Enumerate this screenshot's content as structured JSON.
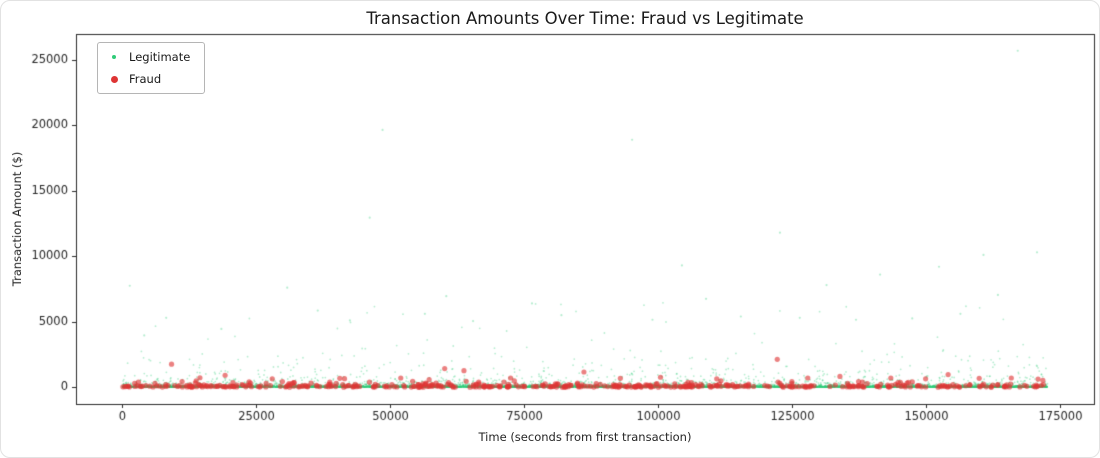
{
  "figure": {
    "background": "#ffffff",
    "border_color": "#e2e2e2"
  },
  "chart_data": {
    "type": "scatter",
    "title": "Transaction Amounts Over Time: Fraud vs Legitimate",
    "xlabel": "Time (seconds from first transaction)",
    "ylabel": "Transaction Amount ($)",
    "xlim": [
      -8640,
      181440
    ],
    "ylim": [
      -1285,
      26980
    ],
    "x_ticks": [
      0,
      25000,
      50000,
      75000,
      100000,
      125000,
      150000,
      175000
    ],
    "y_ticks": [
      0,
      5000,
      10000,
      15000,
      20000,
      25000
    ],
    "grid": false,
    "legend_position": "upper-left",
    "seed": 20240707,
    "series": [
      {
        "name": "Legitimate",
        "color": "#2fcb78",
        "alpha": 0.35,
        "radius_px": 0.9,
        "count": 11000,
        "x_range": [
          0,
          172800
        ],
        "y_model": {
          "type": "lognormal-mixture",
          "components": [
            {
              "weight": 0.97,
              "mu": 3.4,
              "sigma": 1.3
            },
            {
              "weight": 0.03,
              "mu": 7.1,
              "sigma": 0.78
            }
          ],
          "max": 6500
        },
        "outliers": [
          [
            1400,
            7750
          ],
          [
            4100,
            3950
          ],
          [
            8200,
            5300
          ],
          [
            18500,
            4450
          ],
          [
            30800,
            7600
          ],
          [
            36500,
            5850
          ],
          [
            42500,
            5100
          ],
          [
            46200,
            12950
          ],
          [
            48600,
            19650
          ],
          [
            56500,
            5600
          ],
          [
            60500,
            6950
          ],
          [
            65500,
            5050
          ],
          [
            76500,
            6400
          ],
          [
            82000,
            5500
          ],
          [
            95200,
            18900
          ],
          [
            99000,
            5150
          ],
          [
            104500,
            9300
          ],
          [
            109000,
            6750
          ],
          [
            115500,
            5400
          ],
          [
            122800,
            11800
          ],
          [
            126500,
            5300
          ],
          [
            131500,
            7800
          ],
          [
            137000,
            5150
          ],
          [
            141500,
            8600
          ],
          [
            147500,
            5250
          ],
          [
            152500,
            9200
          ],
          [
            156500,
            5600
          ],
          [
            160800,
            10100
          ],
          [
            163500,
            7050
          ],
          [
            167200,
            25700
          ],
          [
            170800,
            10300
          ]
        ]
      },
      {
        "name": "Fraud",
        "color": "#de3434",
        "alpha": 0.62,
        "radius_px": 2.6,
        "count": 470,
        "x_range": [
          0,
          172800
        ],
        "y_model": {
          "type": "exponential",
          "mean": 115,
          "max": 800
        },
        "outliers": [
          [
            9200,
            1760
          ],
          [
            14500,
            720
          ],
          [
            19200,
            910
          ],
          [
            28000,
            640
          ],
          [
            41500,
            650
          ],
          [
            52000,
            700
          ],
          [
            60200,
            1420
          ],
          [
            63800,
            1260
          ],
          [
            72500,
            700
          ],
          [
            86200,
            1160
          ],
          [
            93000,
            680
          ],
          [
            100500,
            760
          ],
          [
            111000,
            640
          ],
          [
            122300,
            2130
          ],
          [
            128000,
            700
          ],
          [
            134000,
            820
          ],
          [
            143500,
            700
          ],
          [
            150000,
            640
          ],
          [
            154200,
            960
          ],
          [
            160000,
            680
          ],
          [
            166000,
            700
          ],
          [
            171000,
            620
          ]
        ]
      }
    ]
  }
}
